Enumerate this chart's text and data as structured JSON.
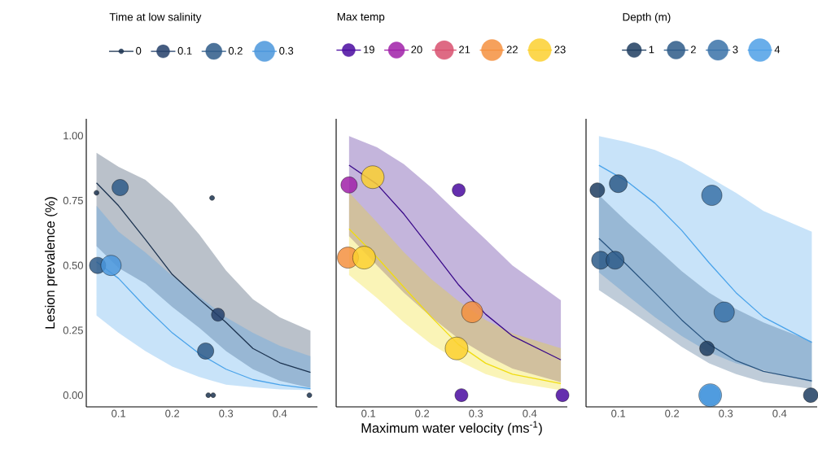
{
  "chart_data": [
    {
      "type": "scatter",
      "ylabel": "Lesion prevalence (%)",
      "legend_title": "Time at low salinity",
      "legend": "top",
      "xlim": [
        0.04,
        0.47
      ],
      "ylim": [
        -0.045,
        1.065
      ],
      "xticks": [
        0.1,
        0.2,
        0.3,
        0.4
      ],
      "yticks": [
        {
          "value": 0,
          "label": "0.00"
        },
        {
          "value": 0.25,
          "label": "0.25"
        },
        {
          "value": 0.5,
          "label": "0.50"
        },
        {
          "value": 0.75,
          "label": "0.75"
        },
        {
          "value": 1,
          "label": "1.00"
        }
      ],
      "series": [
        {
          "type": "line",
          "color": "#1c3350",
          "x": [
            0.059,
            0.1,
            0.15,
            0.2,
            0.25,
            0.3,
            0.35,
            0.4,
            0.457
          ],
          "values": [
            0.818,
            0.73,
            0.6,
            0.465,
            0.37,
            0.28,
            0.18,
            0.125,
            0.088
          ],
          "lower": [
            0.574,
            0.49,
            0.43,
            0.34,
            0.26,
            0.17,
            0.1,
            0.055,
            0.028
          ],
          "upper": [
            0.934,
            0.88,
            0.83,
            0.74,
            0.62,
            0.48,
            0.37,
            0.3,
            0.248
          ]
        },
        {
          "type": "line",
          "color": "#4aa3ea",
          "x": [
            0.059,
            0.1,
            0.15,
            0.2,
            0.25,
            0.3,
            0.35,
            0.4,
            0.457
          ],
          "values": [
            0.514,
            0.45,
            0.34,
            0.24,
            0.16,
            0.1,
            0.06,
            0.04,
            0.025
          ],
          "lower": [
            0.307,
            0.24,
            0.17,
            0.11,
            0.07,
            0.04,
            0.03,
            0.022,
            0.019
          ],
          "upper": [
            0.73,
            0.63,
            0.55,
            0.46,
            0.38,
            0.3,
            0.24,
            0.19,
            0.15
          ]
        },
        {
          "name": "0",
          "color": "#1b3350",
          "x": [
            0.059,
            0.274,
            0.267,
            0.276,
            0.455
          ],
          "values": [
            0.78,
            0.76,
            0,
            0,
            0
          ]
        },
        {
          "name": "0.1",
          "color": "#24406a",
          "x": [
            0.285
          ],
          "values": [
            0.31
          ]
        },
        {
          "name": "0.2",
          "color": "#2e5a88",
          "x": [
            0.103,
            0.061,
            0.262
          ],
          "values": [
            0.8,
            0.5,
            0.17
          ]
        },
        {
          "name": "0.3",
          "color": "#4a96dc",
          "x": [
            0.086
          ],
          "values": [
            0.5
          ]
        }
      ]
    },
    {
      "type": "scatter",
      "xlabel": "Maximum water velocity (ms$^{-1}$)",
      "legend_title": "Max temp",
      "legend": "top",
      "tick_labels": "x",
      "xlim": [
        0.04,
        0.47
      ],
      "ylim": [
        -0.045,
        1.065
      ],
      "xticks": [
        0.1,
        0.2,
        0.3,
        0.4
      ],
      "series": [
        {
          "type": "line",
          "color": "#3a0a8a",
          "x": [
            0.064,
            0.116,
            0.166,
            0.217,
            0.267,
            0.318,
            0.368,
            0.458
          ],
          "values": [
            0.886,
            0.813,
            0.698,
            0.562,
            0.427,
            0.312,
            0.228,
            0.136
          ],
          "lower": [
            0.613,
            0.5,
            0.395,
            0.301,
            0.218,
            0.155,
            0.102,
            0.05
          ],
          "upper": [
            0.998,
            0.955,
            0.89,
            0.8,
            0.7,
            0.6,
            0.5,
            0.366
          ]
        },
        {
          "type": "line",
          "color": "#f0dc10",
          "x": [
            0.064,
            0.116,
            0.166,
            0.217,
            0.267,
            0.318,
            0.368,
            0.458
          ],
          "values": [
            0.641,
            0.531,
            0.416,
            0.301,
            0.196,
            0.123,
            0.081,
            0.045
          ],
          "lower": [
            0.463,
            0.374,
            0.28,
            0.196,
            0.133,
            0.081,
            0.05,
            0.019
          ],
          "upper": [
            0.781,
            0.666,
            0.551,
            0.447,
            0.363,
            0.29,
            0.238,
            0.181
          ]
        },
        {
          "name": "19",
          "color": "#4a0aa0",
          "x": [
            0.268,
            0.273,
            0.461
          ],
          "values": [
            0.79,
            0,
            0
          ]
        },
        {
          "name": "20",
          "color": "#a020a8",
          "x": [
            0.064
          ],
          "values": [
            0.81
          ]
        },
        {
          "name": "21",
          "color": "#d8506e"
        },
        {
          "name": "22",
          "color": "#f59040",
          "x": [
            0.062,
            0.293
          ],
          "values": [
            0.53,
            0.32
          ]
        },
        {
          "name": "23",
          "color": "#fcd030",
          "x": [
            0.108,
            0.092,
            0.264
          ],
          "values": [
            0.84,
            0.53,
            0.18
          ]
        }
      ]
    },
    {
      "type": "scatter",
      "legend_title": "Depth (m)",
      "legend": "top",
      "tick_labels": "x",
      "xlim": [
        0.04,
        0.47
      ],
      "ylim": [
        -0.045,
        1.065
      ],
      "xticks": [
        0.1,
        0.2,
        0.3,
        0.4
      ],
      "series": [
        {
          "type": "line",
          "color": "#4aa3ea",
          "x": [
            0.064,
            0.117,
            0.168,
            0.218,
            0.269,
            0.319,
            0.37,
            0.46
          ],
          "values": [
            0.886,
            0.823,
            0.74,
            0.635,
            0.51,
            0.395,
            0.301,
            0.203
          ],
          "lower": [
            0.473,
            0.384,
            0.301,
            0.228,
            0.165,
            0.123,
            0.097,
            0.05
          ],
          "upper": [
            0.998,
            0.975,
            0.945,
            0.9,
            0.84,
            0.78,
            0.71,
            0.63
          ]
        },
        {
          "type": "line",
          "color": "#2a5580",
          "x": [
            0.064,
            0.117,
            0.168,
            0.218,
            0.269,
            0.319,
            0.37,
            0.46
          ],
          "values": [
            0.604,
            0.5,
            0.395,
            0.29,
            0.196,
            0.133,
            0.092,
            0.055
          ],
          "lower": [
            0.405,
            0.332,
            0.259,
            0.186,
            0.123,
            0.081,
            0.05,
            0.024
          ],
          "upper": [
            0.771,
            0.666,
            0.572,
            0.478,
            0.395,
            0.332,
            0.28,
            0.207
          ]
        },
        {
          "name": "1",
          "color": "#1f3d60",
          "x": [
            0.061,
            0.265,
            0.458
          ],
          "values": [
            0.79,
            0.18,
            0
          ]
        },
        {
          "name": "2",
          "color": "#2d5a88",
          "x": [
            0.1,
            0.067,
            0.094
          ],
          "values": [
            0.815,
            0.52,
            0.52
          ]
        },
        {
          "name": "3",
          "color": "#3a72a8",
          "x": [
            0.274,
            0.297,
            0.271
          ],
          "values": [
            0.77,
            0.32,
            0
          ]
        },
        {
          "name": "4",
          "color": "#4fa0e6",
          "x": [
            0.271
          ],
          "values": [
            0
          ]
        }
      ]
    }
  ]
}
